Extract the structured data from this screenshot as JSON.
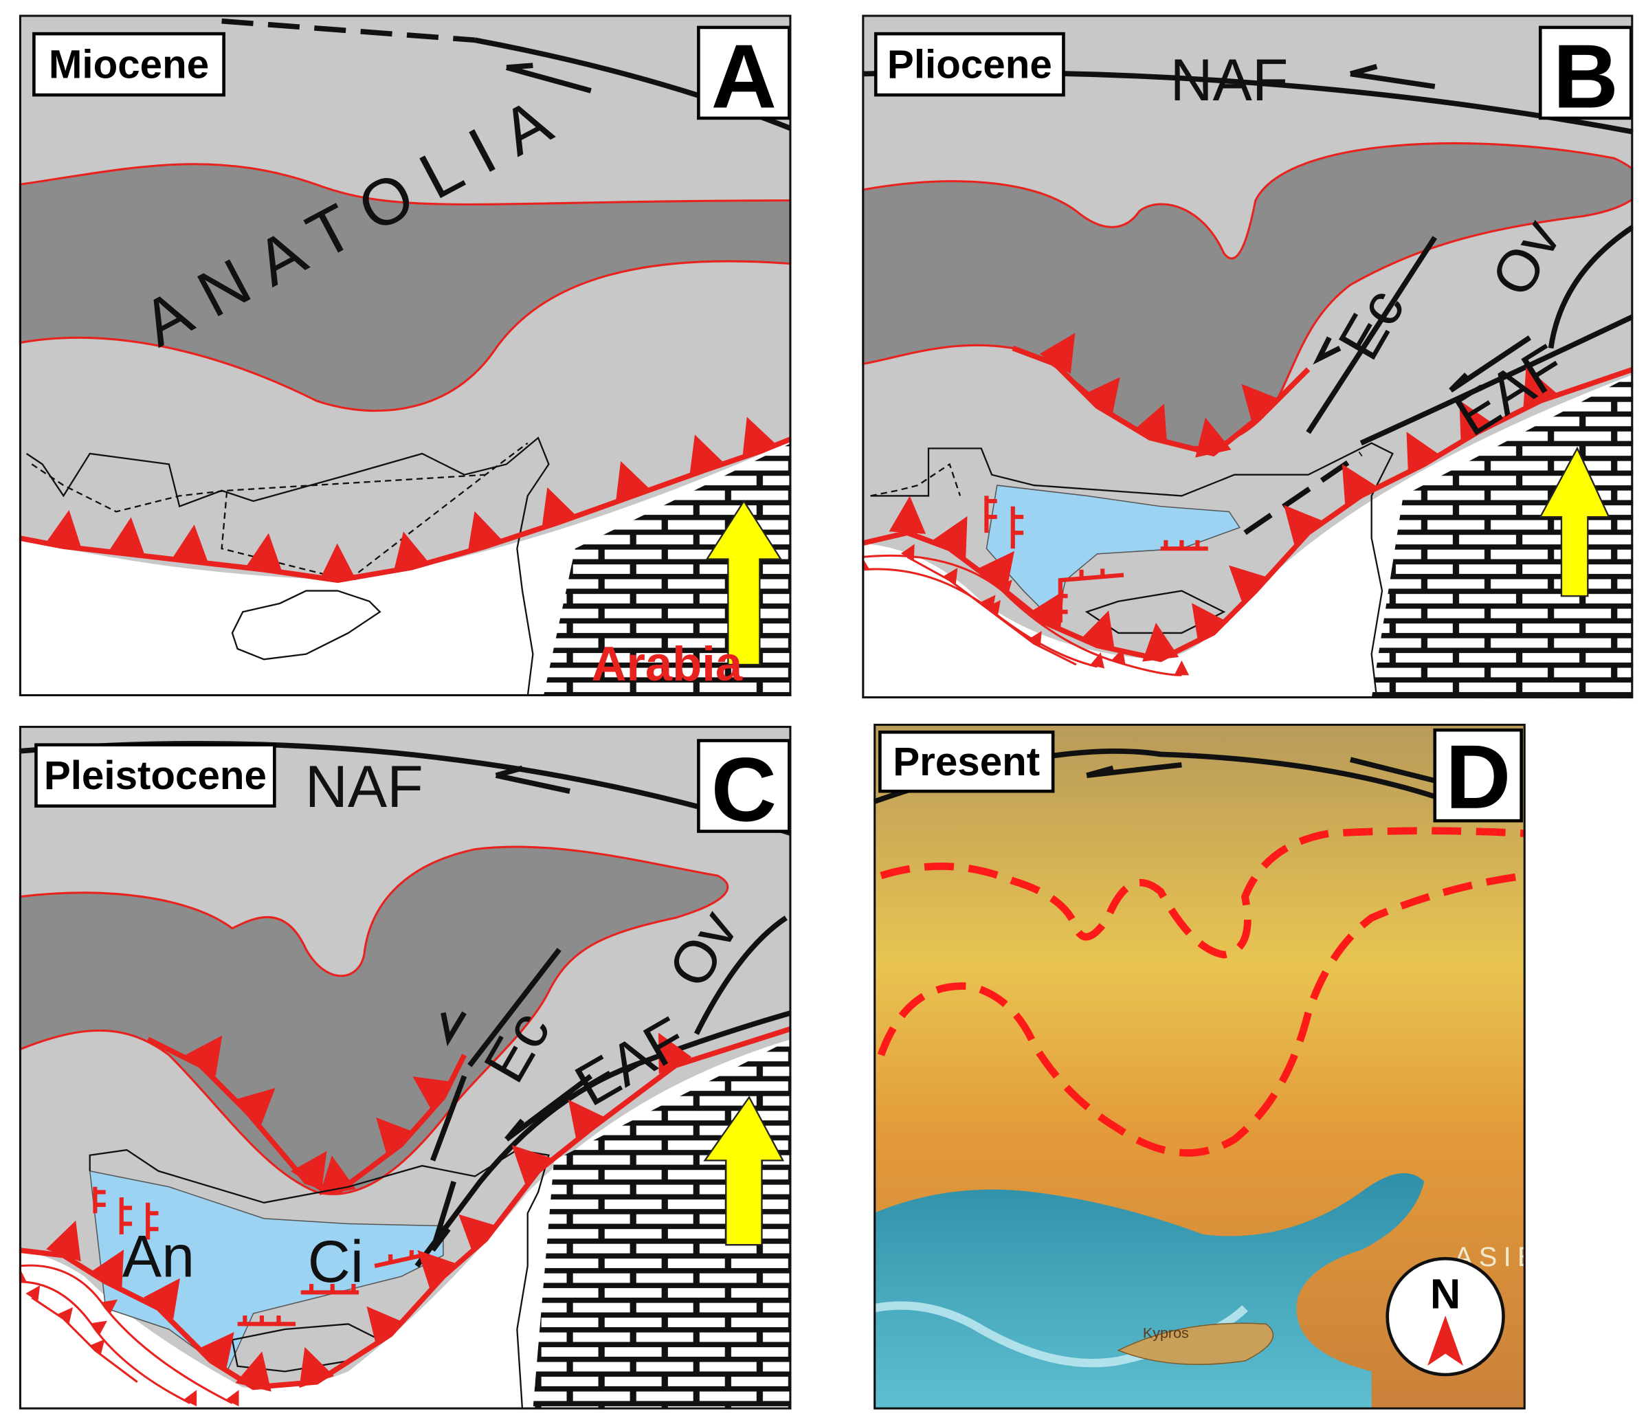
{
  "panels": [
    {
      "period": "Miocene",
      "letter": "A",
      "labels": [
        "ANATOLIA",
        "Arabia"
      ]
    },
    {
      "period": "Pliocene",
      "letter": "B",
      "labels": [
        "NAF",
        "Ec",
        "Ov",
        "EAF"
      ]
    },
    {
      "period": "Pleistocene",
      "letter": "C",
      "labels": [
        "NAF",
        "Ec",
        "Ov",
        "EAF",
        "An",
        "Ci"
      ]
    },
    {
      "period": "Present",
      "letter": "D",
      "labels": [
        "ASIE",
        "Kypros"
      ],
      "compass": "N"
    }
  ]
}
